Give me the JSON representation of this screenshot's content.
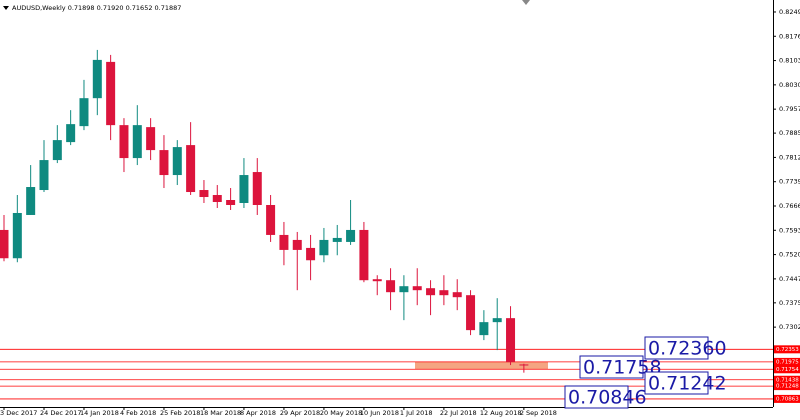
{
  "chart_data": {
    "type": "candlestick",
    "title": "AUDUSD,Weekly  0.71898 0.71920 0.71652 0.71887",
    "categories": [
      "3 Dec 2017",
      null,
      null,
      "24 Dec 2017",
      null,
      null,
      "14 Jan 2018",
      null,
      null,
      "4 Feb 2018",
      null,
      null,
      "25 Feb 2018",
      null,
      null,
      "18 Mar 2018",
      null,
      null,
      "8 Apr 2018",
      null,
      null,
      "29 Apr 2018",
      null,
      null,
      "20 May 2018",
      null,
      null,
      "10 Jun 2018",
      null,
      null,
      "1 Jul 2018",
      null,
      null,
      "22 Jul 2018",
      null,
      null,
      "12 Aug 2018",
      null,
      null,
      "2 Sep 2018"
    ],
    "open": [
      0.7594,
      0.7509,
      0.7639,
      0.7714,
      0.7804,
      0.7858,
      0.7906,
      0.799,
      0.8099,
      0.7909,
      0.781,
      0.7903,
      0.7834,
      0.7759,
      0.7849,
      0.7714,
      0.7699,
      0.7684,
      0.7675,
      0.7768,
      0.7669,
      0.7579,
      0.7564,
      0.754,
      0.7518,
      0.7558,
      0.7558,
      0.7594,
      0.7446,
      0.7443,
      0.7407,
      0.7425,
      0.7419,
      0.7413,
      0.7407,
      0.7398,
      0.7278,
      0.7317,
      0.7329,
      0.71898
    ],
    "high": [
      0.7639,
      0.7699,
      0.7789,
      0.7864,
      0.7909,
      0.7954,
      0.8045,
      0.8135,
      0.812,
      0.793,
      0.7969,
      0.793,
      0.7879,
      0.7864,
      0.7918,
      0.7744,
      0.7729,
      0.772,
      0.781,
      0.781,
      0.7699,
      0.7618,
      0.7588,
      0.7579,
      0.76,
      0.7609,
      0.7684,
      0.7618,
      0.7458,
      0.7479,
      0.7458,
      0.7479,
      0.7443,
      0.7458,
      0.7446,
      0.7413,
      0.7353,
      0.7389,
      0.7365,
      0.7192
    ],
    "low": [
      0.75,
      0.7497,
      0.7639,
      0.7708,
      0.7795,
      0.7849,
      0.7894,
      0.7939,
      0.7864,
      0.7768,
      0.7789,
      0.7804,
      0.772,
      0.7729,
      0.7699,
      0.7675,
      0.766,
      0.7654,
      0.766,
      0.7639,
      0.7558,
      0.7488,
      0.7413,
      0.7443,
      0.7497,
      0.7518,
      0.7549,
      0.7437,
      0.7398,
      0.7353,
      0.7323,
      0.7368,
      0.7338,
      0.7368,
      0.7353,
      0.7278,
      0.7263,
      0.7233,
      0.7188,
      0.71652
    ],
    "close": [
      0.7509,
      0.7645,
      0.7723,
      0.7804,
      0.7864,
      0.7912,
      0.799,
      0.8105,
      0.7909,
      0.781,
      0.7909,
      0.7834,
      0.7759,
      0.7843,
      0.7708,
      0.7693,
      0.7678,
      0.7669,
      0.7759,
      0.7669,
      0.7579,
      0.7534,
      0.7534,
      0.7503,
      0.7564,
      0.757,
      0.7594,
      0.7443,
      0.744,
      0.7407,
      0.7425,
      0.7413,
      0.7398,
      0.7398,
      0.7392,
      0.7293,
      0.7317,
      0.7329,
      0.7197,
      0.71887
    ],
    "up_color": "#0f8a80",
    "down_color": "#dc143c",
    "ylim": [
      0.7062,
      0.8285
    ],
    "yticks": [
      {
        "value": 0.8249,
        "label": "0.82490"
      },
      {
        "value": 0.8176,
        "label": "0.81760"
      },
      {
        "value": 0.8103,
        "label": "0.81030"
      },
      {
        "value": 0.803,
        "label": "0.80300"
      },
      {
        "value": 0.7957,
        "label": "0.79570"
      },
      {
        "value": 0.7885,
        "label": "0.78850"
      },
      {
        "value": 0.7812,
        "label": "0.78120"
      },
      {
        "value": 0.7739,
        "label": "0.77390"
      },
      {
        "value": 0.7666,
        "label": "0.76660"
      },
      {
        "value": 0.7593,
        "label": "0.75930"
      },
      {
        "value": 0.752,
        "label": "0.75200"
      },
      {
        "value": 0.7447,
        "label": "0.74470"
      },
      {
        "value": 0.7375,
        "label": "0.73750"
      },
      {
        "value": 0.7302,
        "label": "0.73020"
      }
    ],
    "levels": [
      0.72353,
      0.71975,
      0.71754,
      0.71438,
      0.71248,
      0.70863
    ],
    "level_color": "#ff0000",
    "zone": [
      0.71754,
      0.71975
    ],
    "zone_color": "#f4a582",
    "annotations": [
      "0.72360",
      "0.71758",
      "0.71242",
      "0.70846"
    ]
  }
}
